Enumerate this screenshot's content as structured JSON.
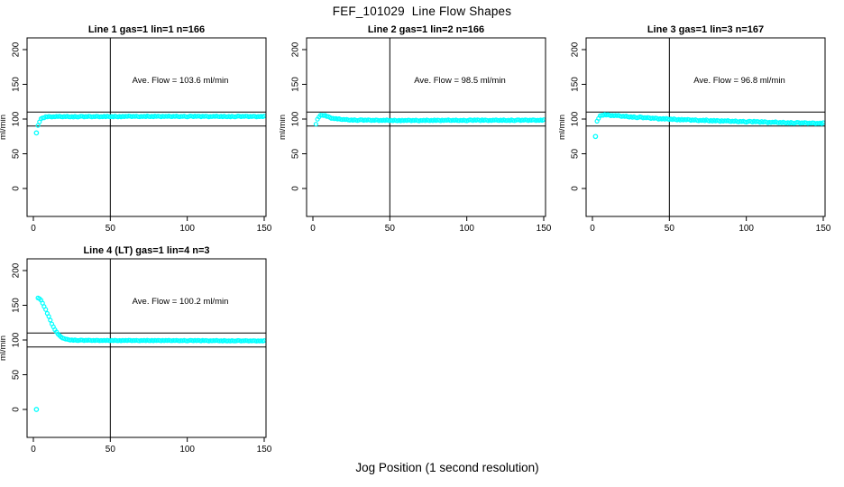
{
  "title": "FEF_101029  Line Flow Shapes",
  "xlabel": "Jog Position (1 second resolution)",
  "point_color": "#00ffff",
  "axis_color": "#000000",
  "chart_data": [
    {
      "type": "scatter",
      "title": "Line 1 gas=1 lin=1 n=166",
      "annotation": "Ave. Flow =  103.6  ml/min",
      "ave_flow": 103.6,
      "n": 166,
      "ylabel": "ml/min",
      "x_ticks": [
        0,
        50,
        100,
        150
      ],
      "y_ticks": [
        0,
        50,
        100,
        150,
        200
      ],
      "xlim": [
        -5,
        156
      ],
      "ylim": [
        -40,
        217
      ],
      "ref_lines_y": [
        90,
        110
      ],
      "ref_line_x": 50,
      "outliers": [
        [
          2,
          80
        ]
      ],
      "curve_anchors": [
        [
          3,
          90
        ],
        [
          4,
          96
        ],
        [
          5,
          100
        ],
        [
          6,
          101.5
        ],
        [
          8,
          103
        ],
        [
          12,
          103.5
        ],
        [
          30,
          103.5
        ],
        [
          60,
          103.8
        ],
        [
          100,
          103.8
        ],
        [
          150,
          103.8
        ]
      ],
      "x_step": 1,
      "band_jitter": 0.7
    },
    {
      "type": "scatter",
      "title": "Line 2 gas=1 lin=2 n=166",
      "annotation": "Ave. Flow =  98.5  ml/min",
      "ave_flow": 98.5,
      "n": 166,
      "ylabel": "ml/min",
      "x_ticks": [
        0,
        50,
        100,
        150
      ],
      "y_ticks": [
        0,
        50,
        100,
        150,
        200
      ],
      "xlim": [
        -5,
        156
      ],
      "ylim": [
        -40,
        217
      ],
      "ref_lines_y": [
        90,
        110
      ],
      "ref_line_x": 50,
      "outliers": [],
      "curve_anchors": [
        [
          2,
          93
        ],
        [
          3,
          99
        ],
        [
          4,
          103
        ],
        [
          5,
          105
        ],
        [
          7,
          105.5
        ],
        [
          9,
          104
        ],
        [
          12,
          101.5
        ],
        [
          16,
          100
        ],
        [
          22,
          99
        ],
        [
          30,
          98.5
        ],
        [
          60,
          98
        ],
        [
          100,
          98.2
        ],
        [
          150,
          98.5
        ]
      ],
      "x_step": 1,
      "band_jitter": 0.7
    },
    {
      "type": "scatter",
      "title": "Line 3 gas=1 lin=3 n=167",
      "annotation": "Ave. Flow =  96.8  ml/min",
      "ave_flow": 96.8,
      "n": 167,
      "ylabel": "ml/min",
      "x_ticks": [
        0,
        50,
        100,
        150
      ],
      "y_ticks": [
        0,
        50,
        100,
        150,
        200
      ],
      "xlim": [
        -5,
        156
      ],
      "ylim": [
        -40,
        217
      ],
      "ref_lines_y": [
        90,
        110
      ],
      "ref_line_x": 50,
      "outliers": [
        [
          2,
          75
        ]
      ],
      "curve_anchors": [
        [
          3,
          96
        ],
        [
          4,
          101
        ],
        [
          5,
          104
        ],
        [
          7,
          106
        ],
        [
          12,
          105.5
        ],
        [
          20,
          104
        ],
        [
          30,
          102.5
        ],
        [
          45,
          100.5
        ],
        [
          60,
          99
        ],
        [
          80,
          97.5
        ],
        [
          100,
          96.3
        ],
        [
          120,
          95.2
        ],
        [
          135,
          94.5
        ],
        [
          150,
          94
        ]
      ],
      "x_step": 1,
      "band_jitter": 0.9
    },
    {
      "type": "scatter",
      "title": "Line 4 (LT) gas=1 lin=4 n=3",
      "annotation": "Ave. Flow =  100.2  ml/min",
      "ave_flow": 100.2,
      "n": 3,
      "ylabel": "ml/min",
      "x_ticks": [
        0,
        50,
        100,
        150
      ],
      "y_ticks": [
        0,
        50,
        100,
        150,
        200
      ],
      "xlim": [
        -5,
        156
      ],
      "ylim": [
        -40,
        217
      ],
      "ref_lines_y": [
        90,
        110
      ],
      "ref_line_x": 50,
      "outliers": [
        [
          2,
          0
        ]
      ],
      "curve_anchors": [
        [
          3,
          160
        ],
        [
          4,
          159.5
        ],
        [
          5,
          157
        ],
        [
          6,
          153
        ],
        [
          7,
          148.5
        ],
        [
          8,
          143.5
        ],
        [
          9,
          138.5
        ],
        [
          10,
          133.5
        ],
        [
          11,
          128.5
        ],
        [
          12,
          123.5
        ],
        [
          13,
          119
        ],
        [
          14,
          115
        ],
        [
          15,
          111.5
        ],
        [
          16,
          108.5
        ],
        [
          17,
          106
        ],
        [
          18,
          104.5
        ],
        [
          19,
          103
        ],
        [
          20,
          102
        ],
        [
          22,
          100.8
        ],
        [
          25,
          100
        ],
        [
          30,
          99.6
        ],
        [
          40,
          99.4
        ],
        [
          60,
          99.3
        ],
        [
          90,
          99.2
        ],
        [
          120,
          99
        ],
        [
          150,
          98.8
        ]
      ],
      "x_step": 1,
      "band_jitter": 0.5
    }
  ]
}
